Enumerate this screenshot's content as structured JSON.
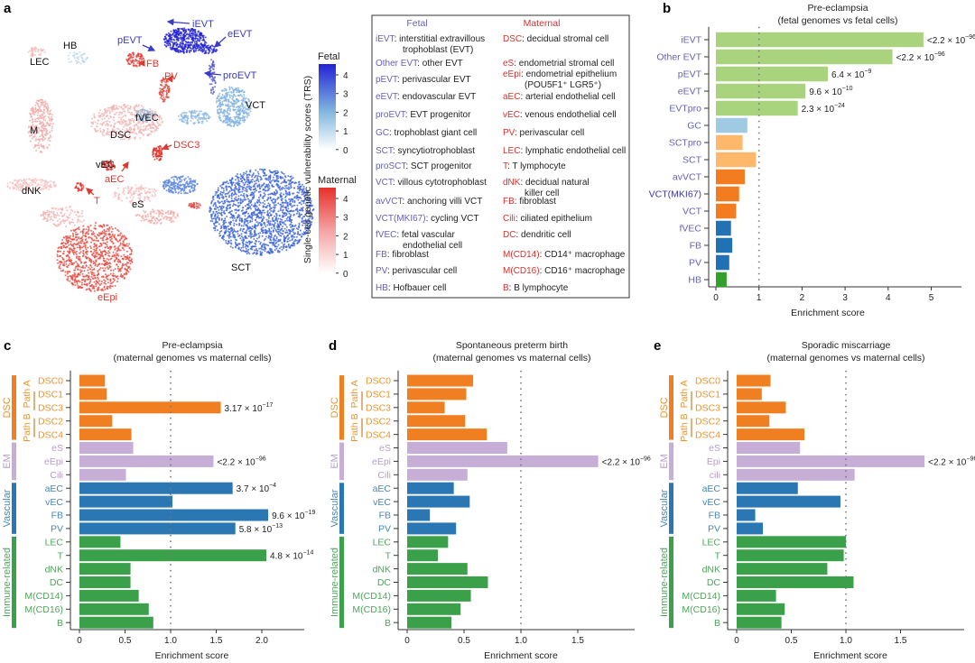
{
  "panel_labels": {
    "a": "a",
    "b": "b",
    "c": "c",
    "d": "d",
    "e": "e"
  },
  "colors": {
    "fetal": "#3b3bc4",
    "maternal": "#d93a32",
    "neutral": "#111111",
    "fetal_code": "#6661b8",
    "maternal_code": "#d9302c"
  },
  "umap": {
    "labels": [
      {
        "text": "iEVT",
        "group": "fetal"
      },
      {
        "text": "eEVT",
        "group": "fetal"
      },
      {
        "text": "pEVT",
        "group": "fetal"
      },
      {
        "text": "HB",
        "group": "neutral"
      },
      {
        "text": "LEC",
        "group": "neutral"
      },
      {
        "text": "FB",
        "group": "maternal"
      },
      {
        "text": "PV",
        "group": "maternal"
      },
      {
        "text": "proEVT",
        "group": "fetal"
      },
      {
        "text": "VCT",
        "group": "neutral"
      },
      {
        "text": "fVEC",
        "group": "neutral"
      },
      {
        "text": "M",
        "group": "neutral"
      },
      {
        "text": "DSC",
        "group": "neutral"
      },
      {
        "text": "DSC3",
        "group": "maternal"
      },
      {
        "text": "vEC",
        "group": "neutral"
      },
      {
        "text": "aEC",
        "group": "maternal"
      },
      {
        "text": "dNK",
        "group": "neutral"
      },
      {
        "text": "T",
        "group": "maternal"
      },
      {
        "text": "eS",
        "group": "neutral"
      },
      {
        "text": "SCT",
        "group": "neutral"
      },
      {
        "text": "eEpi",
        "group": "maternal"
      }
    ],
    "colorbar": {
      "axis_title": "Single-cell genetic vulnerability scores (TRS)",
      "fetal": {
        "title": "Fetal",
        "ticks": [
          "4",
          "3",
          "2",
          "1",
          "0"
        ],
        "color": "#2323d6"
      },
      "maternal": {
        "title": "Maternal",
        "ticks": [
          "4",
          "3",
          "2",
          "1",
          "0"
        ],
        "color": "#e8302a"
      }
    }
  },
  "legend": {
    "fetal_header": "Fetal",
    "maternal_header": "Maternal",
    "fetal": [
      {
        "code": "iEVT",
        "desc": ": interstitial extravillous",
        "desc2": "trophoblast (EVT)"
      },
      {
        "code": "Other EVT",
        "desc": ": other EVT"
      },
      {
        "code": "pEVT",
        "desc": ": perivascular EVT"
      },
      {
        "code": "eEVT",
        "desc": ": endovascular EVT"
      },
      {
        "code": "proEVT",
        "desc": ": EVT progenitor"
      },
      {
        "code": "GC",
        "desc": ": trophoblast giant cell"
      },
      {
        "code": "SCT",
        "desc": ": syncytiotrophoblast"
      },
      {
        "code": "proSCT",
        "desc": ": SCT progenitor"
      },
      {
        "code": "VCT",
        "desc": ": villous cytotrophoblast"
      },
      {
        "code": "avVCT",
        "desc": ": anchoring villi VCT"
      },
      {
        "code": "VCT(MKI67)",
        "desc": ": cycling VCT"
      },
      {
        "code": "fVEC",
        "desc": ": fetal vascular",
        "desc2": "endothelial cell"
      },
      {
        "code": "FB",
        "desc": ": fibroblast"
      },
      {
        "code": "PV",
        "desc": ": perivascular cell"
      },
      {
        "code": "HB",
        "desc": ": Hofbauer cell"
      }
    ],
    "maternal": [
      {
        "code": "DSC",
        "desc": ": decidual stromal cell"
      },
      {
        "code": "eS",
        "desc": ": endometrial stromal cell"
      },
      {
        "code": "eEpi",
        "desc": ": endometrial epithelium",
        "desc2": "(POU5F1⁺ LGR5⁺)"
      },
      {
        "code": "aEC",
        "desc": ": arterial endothelial cell"
      },
      {
        "code": "vEC",
        "desc": ": venous endothelial cell"
      },
      {
        "code": "PV",
        "desc": ": perivascular cell"
      },
      {
        "code": "LEC",
        "desc": ": lymphatic endothelial cell"
      },
      {
        "code": "T",
        "desc": ": T lymphocyte"
      },
      {
        "code": "dNK",
        "desc": ": decidual natural",
        "desc2": "killer cell"
      },
      {
        "code": "FB",
        "desc": ": fibroblast"
      },
      {
        "code": "Cili",
        "desc": ": ciliated epithelium"
      },
      {
        "code": "DC",
        "desc": ": dendritic cell"
      },
      {
        "code": "M(CD14)",
        "desc": ": CD14⁺ macrophage"
      },
      {
        "code": "M(CD16)",
        "desc": ": CD16⁺ macrophage"
      },
      {
        "code": "B",
        "desc": ": B lymphocyte"
      }
    ]
  },
  "chart_data": [
    {
      "panel": "b",
      "type": "bar",
      "orientation": "horizontal",
      "title": "Pre-eclampsia",
      "subtitle": "(fetal genomes vs fetal cells)",
      "xlabel": "Enrichment score",
      "xlim": [
        0,
        5.6
      ],
      "xticks": [
        0,
        1,
        2,
        3,
        4,
        5
      ],
      "xtick_labels": [
        "0",
        "1",
        "2",
        "3",
        "4",
        "5"
      ],
      "reference_line": 1,
      "grid": false,
      "categories": [
        "iEVT",
        "Other EVT",
        "pEVT",
        "eEVT",
        "EVTpro",
        "GC",
        "SCTpro",
        "SCT",
        "avVCT",
        "VCT(MKI67)",
        "VCT",
        "fVEC",
        "FB",
        "PV",
        "HB"
      ],
      "values": [
        4.82,
        4.1,
        2.6,
        2.08,
        1.9,
        0.73,
        0.62,
        0.93,
        0.67,
        0.54,
        0.47,
        0.35,
        0.38,
        0.31,
        0.25
      ],
      "bar_colors": [
        "#a9d37d",
        "#a9d37d",
        "#a9d37d",
        "#a9d37d",
        "#a9d37d",
        "#9fcae3",
        "#fdb86b",
        "#fdb86b",
        "#f47c20",
        "#f47c20",
        "#f47c20",
        "#2171b5",
        "#2171b5",
        "#2171b5",
        "#33a02c"
      ],
      "label_colors": [
        "#6661b8",
        "#6661b8",
        "#6661b8",
        "#6661b8",
        "#6661b8",
        "#6661b8",
        "#6661b8",
        "#6661b8",
        "#6661b8",
        "#3b37a8",
        "#6661b8",
        "#6661b8",
        "#6661b8",
        "#6661b8",
        "#6661b8"
      ],
      "pvalues": [
        {
          "index": 0,
          "mantissa": "<2.2 × 10",
          "exponent": "−96"
        },
        {
          "index": 1,
          "mantissa": "<2.2 × 10",
          "exponent": "−96"
        },
        {
          "index": 2,
          "mantissa": "6.4 × 10",
          "exponent": "−9"
        },
        {
          "index": 3,
          "mantissa": "9.6 × 10",
          "exponent": "−10"
        },
        {
          "index": 4,
          "mantissa": "2.3 × 10",
          "exponent": "−24"
        }
      ]
    },
    {
      "panel": "c",
      "type": "bar",
      "orientation": "horizontal",
      "title": "Pre-eclampsia",
      "subtitle": "(maternal genomes vs maternal cells)",
      "xlabel": "Enrichment score",
      "xlim": [
        0,
        2.45
      ],
      "xticks": [
        0,
        0.5,
        1,
        1.5,
        2
      ],
      "xtick_labels": [
        "0",
        "0.5",
        "1.0",
        "1.5",
        "2.0"
      ],
      "reference_line": 1,
      "grid": false,
      "categories": [
        "DSC0",
        "DSC1",
        "DSC3",
        "DSC2",
        "DSC4",
        "eS",
        "eEpi",
        "Cili",
        "aEC",
        "vEC",
        "FB",
        "PV",
        "LEC",
        "T",
        "dNK",
        "DC",
        "M(CD14)",
        "M(CD16)",
        "B"
      ],
      "values": [
        0.28,
        0.3,
        1.55,
        0.36,
        0.57,
        0.59,
        1.47,
        0.51,
        1.68,
        1.02,
        2.07,
        1.71,
        0.45,
        2.05,
        0.56,
        0.56,
        0.65,
        0.76,
        0.81
      ],
      "groups": [
        {
          "name": "DSC",
          "start": 0,
          "end": 4,
          "color": "#f07f22",
          "text_color": "#e8952f"
        },
        {
          "name": "EM",
          "start": 5,
          "end": 7,
          "color": "#c7aed6",
          "text_color": "#b79ccb"
        },
        {
          "name": "Vascular",
          "start": 8,
          "end": 11,
          "color": "#2a77b4",
          "text_color": "#4a86b5"
        },
        {
          "name": "Immune-related",
          "start": 12,
          "end": 18,
          "color": "#3aa04a",
          "text_color": "#4ea65a"
        }
      ],
      "subgroups": [
        {
          "name": "Path A",
          "start": 0,
          "end": 2,
          "bracket": [
            1,
            2
          ]
        },
        {
          "name": "Path B",
          "start": 3,
          "end": 4,
          "bracket": [
            3,
            4
          ]
        }
      ],
      "pvalues": [
        {
          "index": 2,
          "mantissa": "3.17 × 10",
          "exponent": "−17"
        },
        {
          "index": 6,
          "mantissa": "<2.2 × 10",
          "exponent": "−96"
        },
        {
          "index": 8,
          "mantissa": "3.7 × 10",
          "exponent": "−4"
        },
        {
          "index": 10,
          "mantissa": "9.6 × 10",
          "exponent": "−19"
        },
        {
          "index": 11,
          "mantissa": "5.8 × 10",
          "exponent": "−13"
        },
        {
          "index": 13,
          "mantissa": "4.8 × 10",
          "exponent": "−14"
        }
      ]
    },
    {
      "panel": "d",
      "type": "bar",
      "orientation": "horizontal",
      "title": "Spontaneous preterm birth",
      "subtitle": "(maternal genomes vs maternal cells)",
      "xlabel": "Enrichment score",
      "xlim": [
        0,
        2.0
      ],
      "xticks": [
        0,
        0.5,
        1,
        1.5
      ],
      "xtick_labels": [
        "0",
        "0.5",
        "1.0",
        "1.5"
      ],
      "reference_line": 1,
      "grid": false,
      "categories": [
        "DSC0",
        "DSC1",
        "DSC3",
        "DSC2",
        "DSC4",
        "eS",
        "eEpi",
        "Cili",
        "aEC",
        "vEC",
        "FB",
        "PV",
        "LEC",
        "T",
        "dNK",
        "DC",
        "M(CD14)",
        "M(CD16)",
        "B"
      ],
      "values": [
        0.58,
        0.52,
        0.33,
        0.51,
        0.7,
        0.88,
        1.68,
        0.53,
        0.41,
        0.55,
        0.2,
        0.43,
        0.36,
        0.27,
        0.53,
        0.71,
        0.56,
        0.47,
        0.39
      ],
      "groups": [
        {
          "name": "DSC",
          "start": 0,
          "end": 4,
          "color": "#f07f22",
          "text_color": "#e8952f"
        },
        {
          "name": "EM",
          "start": 5,
          "end": 7,
          "color": "#c7aed6",
          "text_color": "#b79ccb"
        },
        {
          "name": "Vascular",
          "start": 8,
          "end": 11,
          "color": "#2a77b4",
          "text_color": "#4a86b5"
        },
        {
          "name": "Immune-related",
          "start": 12,
          "end": 18,
          "color": "#3aa04a",
          "text_color": "#4ea65a"
        }
      ],
      "subgroups": [
        {
          "name": "Path A",
          "start": 0,
          "end": 2,
          "bracket": [
            1,
            2
          ]
        },
        {
          "name": "Path B",
          "start": 3,
          "end": 4,
          "bracket": [
            3,
            4
          ]
        }
      ],
      "pvalues": [
        {
          "index": 6,
          "mantissa": "<2.2 × 10",
          "exponent": "−96"
        }
      ]
    },
    {
      "panel": "e",
      "type": "bar",
      "orientation": "horizontal",
      "title": "Sporadic miscarriage",
      "subtitle": "(maternal genomes vs maternal cells)",
      "xlabel": "Enrichment score",
      "xlim": [
        0,
        2.08
      ],
      "xticks": [
        0,
        0.5,
        1,
        1.5
      ],
      "xtick_labels": [
        "0",
        "0.5",
        "1.0",
        "1.5"
      ],
      "reference_line": 1,
      "grid": false,
      "categories": [
        "DSC0",
        "DSC1",
        "DSC3",
        "DSC2",
        "DSC4",
        "eS",
        "Epi",
        "cili",
        "aEC",
        "vEC",
        "FB",
        "PV",
        "LEC",
        "T",
        "dNK",
        "DC",
        "M(CD14)",
        "M(CD16)",
        "B"
      ],
      "values": [
        0.31,
        0.23,
        0.45,
        0.3,
        0.62,
        0.58,
        1.72,
        1.08,
        0.56,
        0.95,
        0.17,
        0.24,
        1.0,
        0.98,
        0.83,
        1.07,
        0.36,
        0.44,
        0.41
      ],
      "groups": [
        {
          "name": "DSC",
          "start": 0,
          "end": 4,
          "color": "#f07f22",
          "text_color": "#e8952f"
        },
        {
          "name": "EM",
          "start": 5,
          "end": 7,
          "color": "#c7aed6",
          "text_color": "#b79ccb"
        },
        {
          "name": "Vascular",
          "start": 8,
          "end": 11,
          "color": "#2a77b4",
          "text_color": "#4a86b5"
        },
        {
          "name": "Immune-related",
          "start": 12,
          "end": 18,
          "color": "#3aa04a",
          "text_color": "#4ea65a"
        }
      ],
      "subgroups": [
        {
          "name": "Path A",
          "start": 0,
          "end": 2,
          "bracket": [
            1,
            2
          ]
        },
        {
          "name": "Path B",
          "start": 3,
          "end": 4,
          "bracket": [
            3,
            4
          ]
        }
      ],
      "pvalues": [
        {
          "index": 6,
          "mantissa": "<2.2 × 10",
          "exponent": "−96"
        }
      ]
    }
  ]
}
